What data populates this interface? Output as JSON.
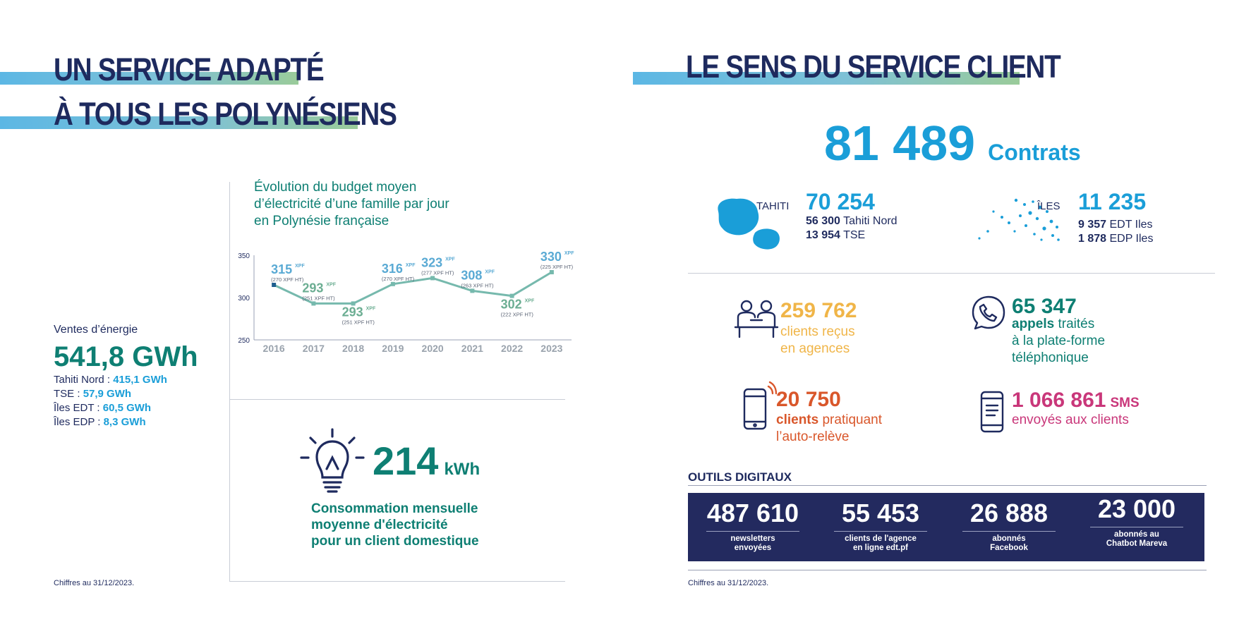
{
  "left": {
    "title_line1": "UN SERVICE ADAPTÉ",
    "title_line2": "À TOUS LES POLYNÉSIENS",
    "energy": {
      "label": "Ventes d’énergie",
      "total": "541,8 GWh",
      "items": [
        {
          "label": "Tahiti Nord : ",
          "value": "415,1 GWh"
        },
        {
          "label": "TSE : ",
          "value": "57,9 GWh"
        },
        {
          "label": "Îles EDT : ",
          "value": "60,5 GWh"
        },
        {
          "label": "Îles EDP : ",
          "value": "8,3 GWh"
        }
      ]
    },
    "chart_title_lines": [
      "Évolution du budget moyen",
      "d’électricité d’une famille par jour",
      "en Polynésie française"
    ],
    "consumption": {
      "value": "214",
      "unit": "kWh",
      "lines": [
        "Consommation mensuelle",
        "moyenne d'électricité",
        "pour un client domestique"
      ]
    },
    "footnote": "Chiffres au 31/12/2023."
  },
  "chart_data": {
    "type": "line",
    "title": "Évolution du budget moyen d’électricité d’une famille par jour en Polynésie française",
    "x": [
      "2016",
      "2017",
      "2018",
      "2019",
      "2020",
      "2021",
      "2022",
      "2023"
    ],
    "ylim": [
      250,
      350
    ],
    "yticks": [
      350,
      300,
      250
    ],
    "series": [
      {
        "values": [
          315,
          293,
          293,
          316,
          323,
          308,
          302,
          330
        ],
        "labels": [
          "315",
          "293",
          "293",
          "316",
          "323",
          "308",
          "302",
          "330"
        ],
        "unit": "XPF",
        "sublabels": [
          "(270 XPF HT)",
          "(251 XPF HT)",
          "(251 XPF HT)",
          "(270 XPF HT)",
          "(277 XPF HT)",
          "(263 XPF HT)",
          "(222 XPF HT)",
          "(225 XPF HT)"
        ]
      }
    ],
    "colors": {
      "line": "#76b9ad",
      "label_blue": "#5aaad4",
      "label_green": "#6cae93"
    }
  },
  "right": {
    "title": "LE SENS DU SERVICE CLIENT",
    "contracts": {
      "value": "81 489",
      "label": "Contrats"
    },
    "tahiti": {
      "name": "TAHITI",
      "value": "70 254",
      "lines": [
        {
          "num": "56 300",
          "text": " Tahiti Nord"
        },
        {
          "num": "13 954",
          "text": " TSE"
        }
      ]
    },
    "iles": {
      "name": "ÎLES",
      "value": "11 235",
      "lines": [
        {
          "num": "9 357",
          "text": " EDT Iles"
        },
        {
          "num": "1 878",
          "text": " EDP Iles"
        }
      ]
    },
    "agencies": {
      "value": "259 762",
      "lines": [
        "clients reçus",
        "en agences"
      ]
    },
    "calls": {
      "value": "65 347",
      "bold": "appels",
      "rest": " traités",
      "lines": [
        "à la plate-forme",
        "téléphonique"
      ]
    },
    "autoreleve": {
      "value": "20 750",
      "bold": "clients",
      "rest": " pratiquant",
      "line2": "l’auto-relève"
    },
    "sms": {
      "value": "1 066 861",
      "unit": "SMS",
      "line": "envoyés aux clients"
    },
    "digital": {
      "title": "OUTILS DIGITAUX",
      "items": [
        {
          "value": "487 610",
          "lines": [
            "newsletters",
            "envoyées"
          ]
        },
        {
          "value": "55 453",
          "lines": [
            "clients de l'agence",
            "en ligne edt.pf"
          ]
        },
        {
          "value": "26 888",
          "lines": [
            "abonnés",
            "Facebook"
          ]
        },
        {
          "value": "23 000",
          "lines": [
            "abonnés au",
            "Chatbot Mareva"
          ]
        }
      ]
    },
    "footnote": "Chiffres au 31/12/2023."
  },
  "colors": {
    "navy": "#1e2a5e",
    "teal": "#0e7f73",
    "cyan": "#1a9ed8",
    "yellow": "#f0b548",
    "orange": "#d9572b",
    "magenta": "#c9377a"
  }
}
